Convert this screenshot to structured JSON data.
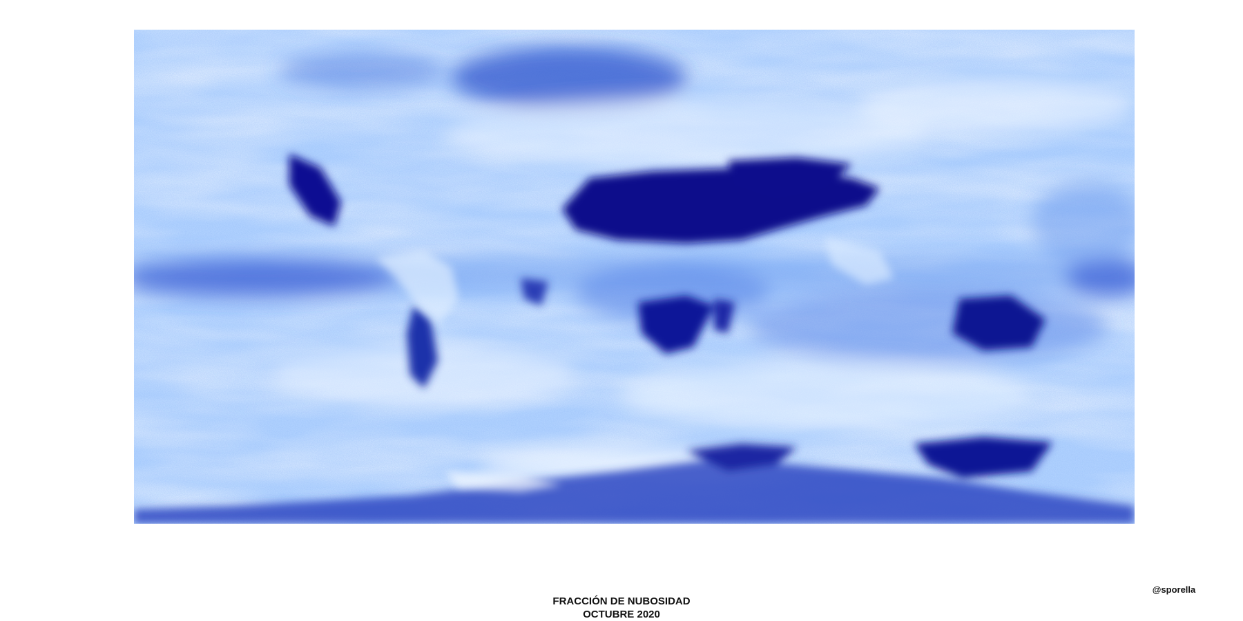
{
  "figure": {
    "title": "FRACCIÓN DE NUBOSIDAD",
    "subtitle": "OCTUBRE 2020",
    "credit": "@sporella"
  },
  "map": {
    "type": "raster-heatmap",
    "variable": "cloud fraction",
    "projection": "equirectangular",
    "extent_lon": [
      -180,
      180
    ],
    "extent_lat": [
      -90,
      90
    ],
    "axes_visible": false,
    "legend_visible": false,
    "color_scale": {
      "low": "#00008b",
      "mid_low": "#3f6ee6",
      "mid": "#8cc0ff",
      "high": "#f0f6ff"
    }
  }
}
